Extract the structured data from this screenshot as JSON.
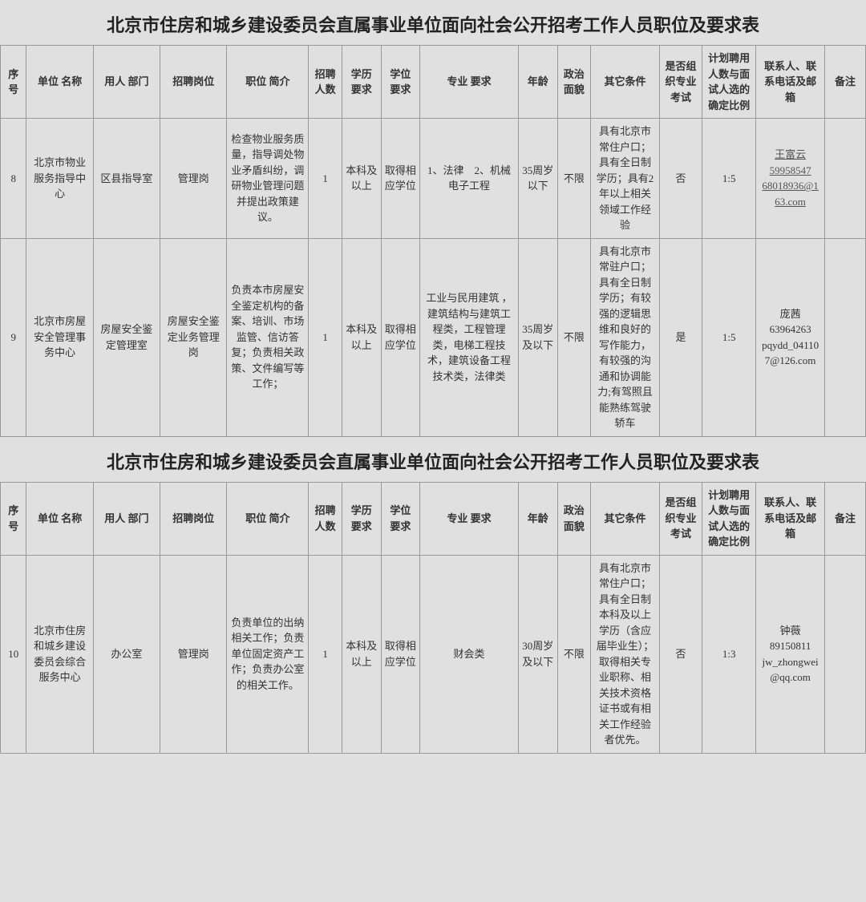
{
  "title": "北京市住房和城乡建设委员会直属事业单位面向社会公开招考工作人员职位及要求表",
  "headers": {
    "seq": "序号",
    "org": "单位\n名称",
    "dept": "用人\n部门",
    "post": "招聘岗位",
    "desc": "职位\n简介",
    "num": "招聘\n人数",
    "edu": "学历\n要求",
    "deg": "学位\n要求",
    "maj": "专业\n要求",
    "age": "年龄",
    "pol": "政治\n面貌",
    "other": "其它条件",
    "exam": "是否组织专业考试",
    "ratio": "计划聘用人数与面试人选的确定比例",
    "contact": "联系人、联系电话及邮箱",
    "note": "备注"
  },
  "section1": {
    "rows": [
      {
        "seq": "8",
        "org": "北京市物业服务指导中心",
        "dept": "区县指导室",
        "post": "管理岗",
        "desc": "检查物业服务质量，指导调处物业矛盾纠纷，调研物业管理问题并提出政策建议。",
        "num": "1",
        "edu": "本科及以上",
        "deg": "取得相应学位",
        "maj": "1、法律　2、机械电子工程",
        "age": "35周岁以下",
        "pol": "不限",
        "other": "具有北京市常住户口；具有全日制学历；具有2年以上相关领域工作经验",
        "exam": "否",
        "ratio": "1:5",
        "contact_name": "王富云",
        "contact_phone": "59958547",
        "contact_email": "68018936@163.com",
        "contact_link": true,
        "note": ""
      },
      {
        "seq": "9",
        "org": "北京市房屋安全管理事务中心",
        "dept": "房屋安全鉴定管理室",
        "post": "房屋安全鉴定业务管理岗",
        "desc": "负责本市房屋安全鉴定机构的备案、培训、市场监管、信访答复；负责相关政策、文件编写等工作；",
        "num": "1",
        "edu": "本科及以上",
        "deg": "取得相应学位",
        "maj": "工业与民用建筑 ，建筑结构与建筑工程类，工程管理类，电梯工程技术，建筑设备工程技术类，法律类",
        "age": "35周岁及以下",
        "pol": "不限",
        "other": "具有北京市常驻户口；具有全日制学历；有较强的逻辑思维和良好的写作能力，有较强的沟通和协调能力;有驾照且能熟练驾驶轿车",
        "exam": "是",
        "ratio": "1:5",
        "contact_name": "庞茜",
        "contact_phone": "63964263",
        "contact_email": "pqydd_041107@126.com",
        "contact_link": false,
        "note": ""
      }
    ]
  },
  "section2": {
    "rows": [
      {
        "seq": "10",
        "org": "北京市住房和城乡建设委员会综合服务中心",
        "dept": "办公室",
        "post": "管理岗",
        "desc": "负责单位的出纳相关工作；负责单位固定资产工作；负责办公室的相关工作。",
        "num": "1",
        "edu": "本科及以上",
        "deg": "取得相应学位",
        "maj": "财会类",
        "age": "30周岁及以下",
        "pol": "不限",
        "other": "具有北京市常住户口；具有全日制本科及以上学历（含应届毕业生）；取得相关专业职称、相关技术资格证书或有相关工作经验者优先。",
        "exam": "否",
        "ratio": "1:3",
        "contact_name": "钟薇",
        "contact_phone": "89150811",
        "contact_email": "jw_zhongwei@qq.com",
        "contact_link": false,
        "note": ""
      }
    ]
  }
}
